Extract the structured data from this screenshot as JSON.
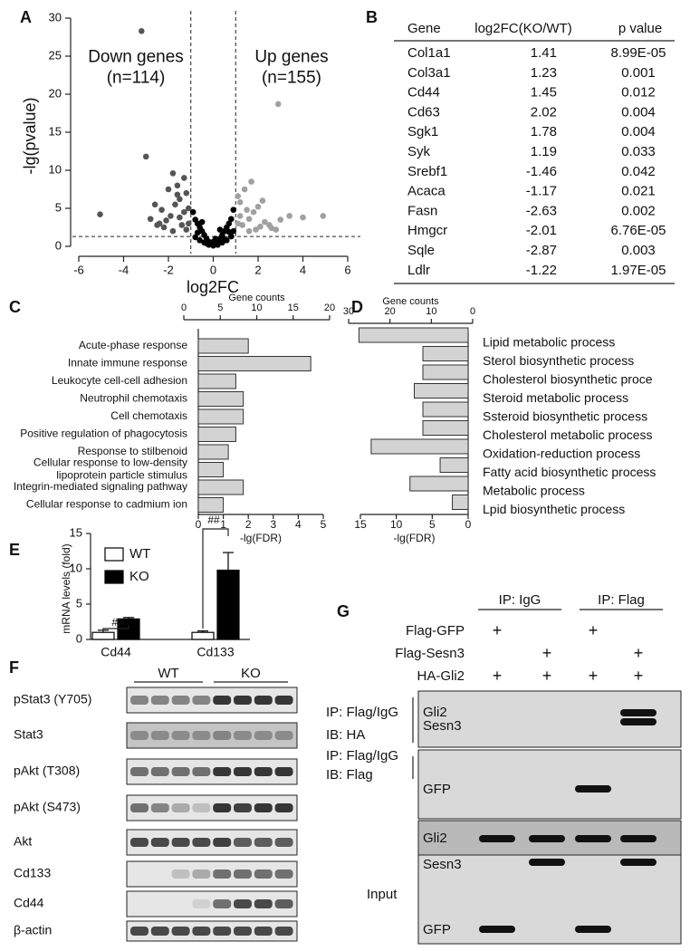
{
  "panel_labels": [
    "A",
    "B",
    "C",
    "D",
    "E",
    "F",
    "G"
  ],
  "chart_data": [
    {
      "type": "scatter",
      "xlabel": "log2FC",
      "ylabel": "-lg(pvalue)",
      "annotations": [
        "Down genes\n(n=114)",
        "Up genes\n(n=155)"
      ],
      "xlim": [
        -6,
        6
      ],
      "xticks": [
        -6,
        -4,
        -2,
        0,
        2,
        4,
        6
      ],
      "ylim": [
        0,
        30
      ],
      "yticks": [
        0,
        5,
        10,
        15,
        20,
        25,
        30
      ],
      "vlines": [
        -1,
        1
      ],
      "hline": 1.3,
      "series": [
        {
          "color": "#555555",
          "x": [
            -3.2,
            -3.0,
            -5.05,
            -2.6,
            -2.3,
            -2.0,
            -1.8,
            -1.6,
            -1.5,
            -1.3,
            -1.2,
            -1.1,
            -2.8,
            -2.5,
            -2.2,
            -1.9,
            -1.7,
            -1.4,
            -1.2,
            -2.1,
            -1.6,
            -1.3,
            -1.1,
            -2.4,
            -1.8,
            -1.5
          ],
          "values": [
            28.3,
            11.8,
            4.2,
            5.5,
            4.8,
            7.5,
            9.6,
            8.0,
            6.2,
            4.5,
            7.0,
            3.0,
            3.6,
            2.8,
            2.5,
            4.0,
            5.5,
            2.8,
            2.2,
            3.4,
            6.8,
            9.0,
            5.0,
            3.0,
            2.0,
            3.8
          ]
        },
        {
          "color": "#a0a0a0",
          "x": [
            2.9,
            4.0,
            4.9,
            3.4,
            3.0,
            2.5,
            2.2,
            2.0,
            1.8,
            1.6,
            1.4,
            1.2,
            1.1,
            2.6,
            2.3,
            1.9,
            1.7,
            1.5,
            1.3,
            1.1,
            2.1,
            1.6,
            1.2,
            2.8
          ],
          "values": [
            18.7,
            3.8,
            4.0,
            4.0,
            3.5,
            2.8,
            6.0,
            5.2,
            4.5,
            3.6,
            7.5,
            5.8,
            3.0,
            2.4,
            3.2,
            2.2,
            8.5,
            4.8,
            2.8,
            6.6,
            2.6,
            2.0,
            4.0,
            2.2
          ]
        },
        {
          "color": "#000000",
          "x": [
            -0.9,
            -0.8,
            -0.7,
            -0.6,
            -0.5,
            -0.4,
            -0.3,
            -0.2,
            -0.1,
            0,
            0.1,
            0.2,
            0.3,
            0.4,
            0.5,
            0.6,
            0.7,
            0.8,
            0.9,
            -0.8,
            -0.6,
            -0.4,
            -0.2,
            0,
            0.2,
            0.4,
            0.6,
            0.8,
            -0.7,
            -0.3,
            0.1,
            0.5,
            0.9,
            -0.5,
            0.3,
            0.7
          ],
          "values": [
            4.5,
            3.5,
            3.0,
            2.5,
            2.0,
            1.5,
            1.0,
            0.6,
            0.3,
            0.1,
            0.3,
            0.6,
            1.0,
            1.5,
            2.0,
            2.5,
            3.0,
            3.6,
            4.8,
            1.2,
            0.8,
            0.5,
            0.2,
            0.6,
            0.2,
            0.5,
            0.8,
            1.3,
            1.8,
            0.4,
            1.0,
            0.9,
            2.0,
            3.2,
            2.2,
            1.9
          ]
        }
      ]
    },
    {
      "type": "barh",
      "xlabel": "-lg(FDR)",
      "x2label": "Gene counts",
      "color": "#d3d3d3",
      "categories": [
        "Acute-phase response",
        "Innate immune response",
        "Leukocyte cell-cell adhesion",
        "Neutrophil chemotaxis",
        "Cell chemotaxis",
        "Positive regulation of phagocytosis",
        "Response to stilbenoid",
        "Cellular response to low-density\nlipoprotein particle stimulus",
        "Integrin-mediated signaling pathway",
        "Cellular response to cadmium ion"
      ],
      "values": [
        2.0,
        4.5,
        1.5,
        1.8,
        1.8,
        1.5,
        1.2,
        1.0,
        1.8,
        1.0
      ],
      "xlim": [
        0,
        5
      ],
      "xticks": [
        0,
        1,
        2,
        3,
        4,
        5
      ],
      "x2lim": [
        0,
        20
      ],
      "x2ticks": [
        0,
        5,
        10,
        15,
        20
      ]
    },
    {
      "type": "barh",
      "xlabel": "-lg(FDR)",
      "x2label": "Gene counts",
      "color": "#d3d3d3",
      "categories": [
        "Lipid metabolic process",
        "Sterol biosynthetic process",
        "Cholesterol biosynthetic proce",
        "Steroid metabolic process",
        "Ssteroid biosynthetic process",
        "Cholesterol metabolic process",
        "Oxidation-reduction process",
        "Fatty acid biosynthetic process",
        "Metabolic process",
        "Lpid biosynthetic process"
      ],
      "values": [
        15.2,
        6.3,
        6.3,
        7.5,
        6.3,
        6.3,
        13.5,
        3.9,
        8.1,
        2.2
      ],
      "xlim": [
        15,
        0
      ],
      "xticks": [
        15,
        10,
        5,
        0
      ],
      "x2lim": [
        30,
        0
      ],
      "x2ticks": [
        30,
        20,
        10,
        0
      ]
    },
    {
      "type": "bar",
      "ylabel": "mRNA levels (fold)",
      "categories": [
        "Cd44",
        "Cd133"
      ],
      "annotations": [
        "##",
        "##"
      ],
      "series": [
        {
          "name": "WT",
          "color": "#ffffff",
          "values": [
            1.0,
            1.0
          ],
          "errors": [
            0.3,
            0.2
          ]
        },
        {
          "name": "KO",
          "color": "#000000",
          "values": [
            2.9,
            9.8
          ],
          "errors": [
            0.2,
            2.5
          ]
        }
      ],
      "ylim": [
        0,
        15
      ],
      "yticks": [
        0,
        5,
        10,
        15
      ]
    }
  ],
  "table": {
    "columns": [
      "Gene",
      "log2FC(KO/WT)",
      "p value"
    ],
    "rows": [
      [
        "Col1a1",
        "1.41",
        "8.99E-05"
      ],
      [
        "Col3a1",
        "1.23",
        "0.001"
      ],
      [
        "Cd44",
        "1.45",
        "0.012"
      ],
      [
        "Cd63",
        "2.02",
        "0.004"
      ],
      [
        "Sgk1",
        "1.78",
        "0.004"
      ],
      [
        "Syk",
        "1.19",
        "0.033"
      ],
      [
        "Srebf1",
        "-1.46",
        "0.042"
      ],
      [
        "Acaca",
        "-1.17",
        "0.021"
      ],
      [
        "Fasn",
        "-2.63",
        "0.002"
      ],
      [
        "Hmgcr",
        "-2.01",
        "6.76E-05"
      ],
      [
        "Sqle",
        "-2.87",
        "0.003"
      ],
      [
        "Ldlr",
        "-1.22",
        "1.97E-05"
      ]
    ]
  },
  "panel_f": {
    "groups": [
      "WT",
      "KO"
    ],
    "rows": [
      "pStat3 (Y705)",
      "Stat3",
      "pAkt (T308)",
      "pAkt (S473)",
      "Akt",
      "Cd133",
      "Cd44",
      "β-actin"
    ]
  },
  "panel_g": {
    "ip_headers": [
      "IP: IgG",
      "IP: Flag"
    ],
    "treatments": [
      {
        "label": "Flag-GFP",
        "cells": [
          "+",
          null,
          "+",
          null
        ]
      },
      {
        "label": "Flag-Sesn3",
        "cells": [
          null,
          "+",
          null,
          "+"
        ]
      },
      {
        "label": "HA-Gli2",
        "cells": [
          "+",
          "+",
          "+",
          "+"
        ]
      }
    ],
    "blocks": [
      {
        "labels": [
          "IP: Flag/IgG",
          "IB: HA"
        ],
        "bands": [
          "Gli2"
        ]
      },
      {
        "labels": [
          "IP: Flag/IgG",
          "IB: Flag"
        ],
        "bands": [
          "Sesn3",
          "GFP"
        ]
      },
      {
        "labels": [
          "Input"
        ],
        "bands": [
          "Gli2",
          "Sesn3",
          "GFP"
        ]
      }
    ]
  }
}
